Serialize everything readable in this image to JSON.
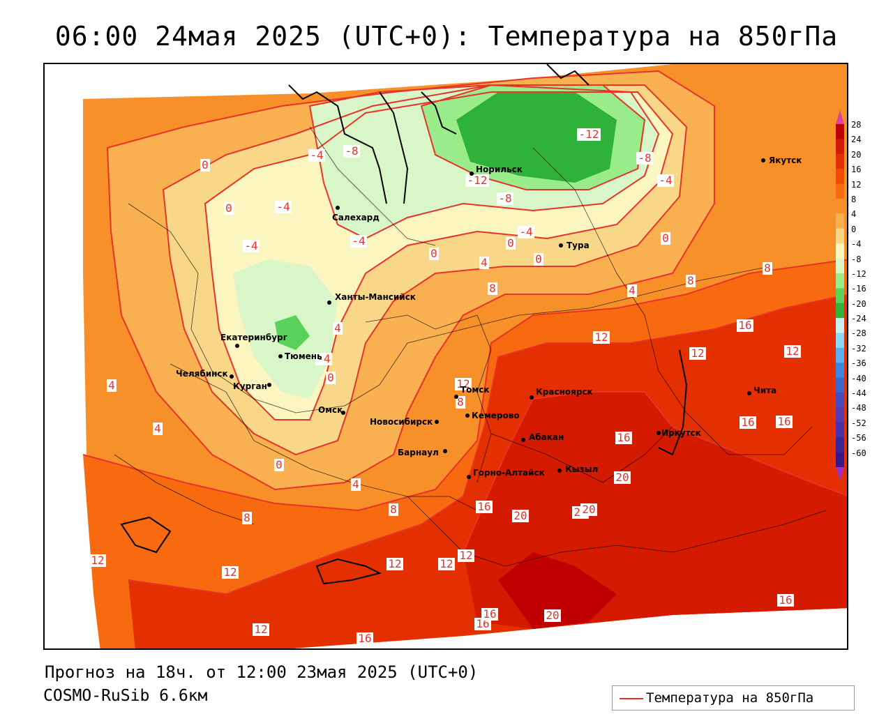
{
  "header": {
    "title": "06:00 24мая 2025 (UTC+0): Температура на 850гПа"
  },
  "footer": {
    "forecast_line": "Прогноз на 18ч. от 12:00 23мая 2025 (UTC+0)",
    "model_line": "COSMO-RuSib 6.6км",
    "legend_label": "Температура на 850гПа"
  },
  "colors": {
    "isoline": "#e8322a",
    "border": "#000000"
  },
  "colorbar": {
    "levels": [
      "28",
      "24",
      "20",
      "16",
      "12",
      "8",
      "4",
      "0",
      "-4",
      "-8",
      "-12",
      "-16",
      "-20",
      "-24",
      "-28",
      "-32",
      "-36",
      "-40",
      "-44",
      "-48",
      "-52",
      "-56",
      "-60"
    ],
    "colors": [
      "#c00000",
      "#d41a00",
      "#e43000",
      "#f24a00",
      "#f86a10",
      "#f8902a",
      "#f8b050",
      "#f8d888",
      "#fbf5c0",
      "#d8f6c8",
      "#9aeb8a",
      "#5ad25a",
      "#2eb23a",
      "#c4f0f0",
      "#8ad8f8",
      "#5ab0f0",
      "#3a88e0",
      "#3a68d0",
      "#4a4ac0",
      "#5a38b0",
      "#4830a8",
      "#3a2898",
      "#3a1888"
    ]
  },
  "map": {
    "cities": [
      {
        "name": "Якутск"
      },
      {
        "name": "Норильск"
      },
      {
        "name": "Салехард"
      },
      {
        "name": "Тура"
      },
      {
        "name": "Ханты-Мансийск"
      },
      {
        "name": "Екатеринбург"
      },
      {
        "name": "Тюмень"
      },
      {
        "name": "Челябинск"
      },
      {
        "name": "Курган"
      },
      {
        "name": "Омск"
      },
      {
        "name": "Новосибирск"
      },
      {
        "name": "Томск"
      },
      {
        "name": "Кемерово"
      },
      {
        "name": "Красноярск"
      },
      {
        "name": "Барнаул"
      },
      {
        "name": "Абакан"
      },
      {
        "name": "Горно-Алтайск"
      },
      {
        "name": "Кызыл"
      },
      {
        "name": "Иркутск"
      },
      {
        "name": "Чита"
      }
    ],
    "isolabels": [
      {
        "v": "-12"
      },
      {
        "v": "-12"
      },
      {
        "v": "-8"
      },
      {
        "v": "-8"
      },
      {
        "v": "-8"
      },
      {
        "v": "-4"
      },
      {
        "v": "-4"
      },
      {
        "v": "-4"
      },
      {
        "v": "-4"
      },
      {
        "v": "-4"
      },
      {
        "v": "-4"
      },
      {
        "v": "-4"
      },
      {
        "v": "0"
      },
      {
        "v": "0"
      },
      {
        "v": "0"
      },
      {
        "v": "0"
      },
      {
        "v": "0"
      },
      {
        "v": "0"
      },
      {
        "v": "0"
      },
      {
        "v": "0"
      },
      {
        "v": "4"
      },
      {
        "v": "4"
      },
      {
        "v": "4"
      },
      {
        "v": "4"
      },
      {
        "v": "4"
      },
      {
        "v": "4"
      },
      {
        "v": "8"
      },
      {
        "v": "8"
      },
      {
        "v": "8"
      },
      {
        "v": "8"
      },
      {
        "v": "8"
      },
      {
        "v": "8"
      },
      {
        "v": "12"
      },
      {
        "v": "12"
      },
      {
        "v": "12"
      },
      {
        "v": "12"
      },
      {
        "v": "12"
      },
      {
        "v": "12"
      },
      {
        "v": "12"
      },
      {
        "v": "12"
      },
      {
        "v": "12"
      },
      {
        "v": "12"
      },
      {
        "v": "16"
      },
      {
        "v": "16"
      },
      {
        "v": "16"
      },
      {
        "v": "16"
      },
      {
        "v": "16"
      },
      {
        "v": "16"
      },
      {
        "v": "16"
      },
      {
        "v": "16"
      },
      {
        "v": "16"
      },
      {
        "v": "20"
      },
      {
        "v": "20"
      },
      {
        "v": "20"
      },
      {
        "v": "20"
      },
      {
        "v": "20"
      }
    ]
  }
}
